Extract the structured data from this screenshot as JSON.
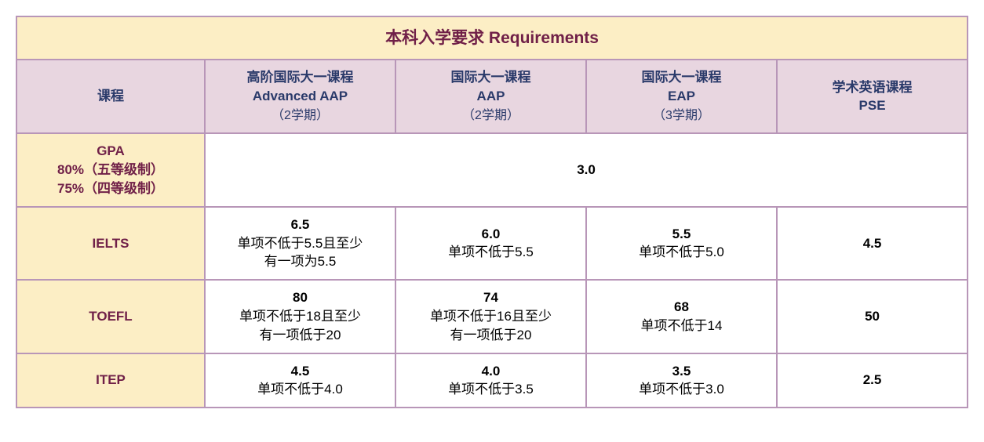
{
  "table": {
    "title": "本科入学要求 Requirements",
    "header": {
      "course_label": "课程",
      "programs": [
        {
          "line1": "高阶国际大一课程",
          "line2": "Advanced AAP",
          "sub": "（2学期）"
        },
        {
          "line1": "国际大一课程",
          "line2": "AAP",
          "sub": "（2学期）"
        },
        {
          "line1": "国际大一课程",
          "line2": "EAP",
          "sub": "（3学期）"
        },
        {
          "line1": "学术英语课程",
          "line2": "PSE",
          "sub": ""
        }
      ]
    },
    "gpa": {
      "label_line1": "GPA",
      "label_line2": "80%（五等级制）",
      "label_line3": "75%（四等级制）",
      "value": "3.0"
    },
    "rows": [
      {
        "label": "IELTS",
        "cells": [
          {
            "score": "6.5",
            "note1": "单项不低于5.5且至少",
            "note2": "有一项为5.5"
          },
          {
            "score": "6.0",
            "note1": "单项不低于5.5",
            "note2": ""
          },
          {
            "score": "5.5",
            "note1": "单项不低于5.0",
            "note2": ""
          },
          {
            "score": "4.5",
            "note1": "",
            "note2": ""
          }
        ]
      },
      {
        "label": "TOEFL",
        "cells": [
          {
            "score": "80",
            "note1": "单项不低于18且至少",
            "note2": "有一项低于20"
          },
          {
            "score": "74",
            "note1": "单项不低于16且至少",
            "note2": "有一项低于20"
          },
          {
            "score": "68",
            "note1": "单项不低于14",
            "note2": ""
          },
          {
            "score": "50",
            "note1": "",
            "note2": ""
          }
        ]
      },
      {
        "label": "ITEP",
        "cells": [
          {
            "score": "4.5",
            "note1": "单项不低于4.0",
            "note2": ""
          },
          {
            "score": "4.0",
            "note1": "单项不低于3.5",
            "note2": ""
          },
          {
            "score": "3.5",
            "note1": "单项不低于3.0",
            "note2": ""
          },
          {
            "score": "2.5",
            "note1": "",
            "note2": ""
          }
        ]
      }
    ],
    "colors": {
      "border": "#b896b8",
      "title_bg": "#fceec5",
      "title_text": "#702048",
      "header_bg": "#e8d6e0",
      "header_text": "#2a3a6a",
      "rowlabel_bg": "#fceec5",
      "rowlabel_text": "#702048",
      "cell_bg": "#ffffff",
      "cell_text": "#000000"
    }
  }
}
